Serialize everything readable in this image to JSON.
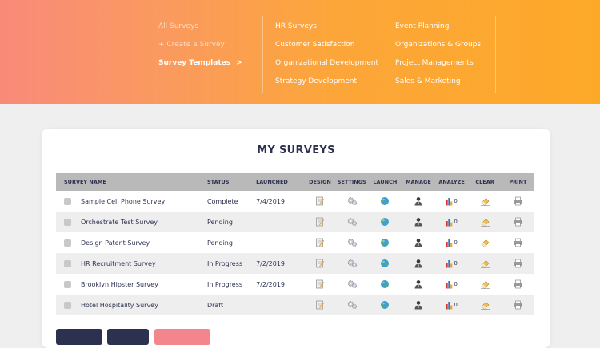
{
  "nav": {
    "col1": [
      "All Surveys",
      "+ Create a Survey",
      "Survey Templates"
    ],
    "col1_active_arrow": ">",
    "col2": [
      "HR Surveys",
      "Customer Satisfaction",
      "Organizational Development",
      "Strategy Development"
    ],
    "col3": [
      "Event Planning",
      "Organizations & Groups",
      "Project Managements",
      "Sales & Marketing"
    ]
  },
  "main": {
    "title": "MY SURVEYS",
    "columns": [
      "SURVEY NAME",
      "STATUS",
      "LAUNCHED",
      "DESIGN",
      "SETTINGS",
      "LAUNCH",
      "MANAGE",
      "ANALYZE",
      "CLEAR",
      "PRINT"
    ],
    "rows": [
      {
        "name": "Sample Cell Phone Survey",
        "status": "Complete",
        "launched": "7/4/2019",
        "responses": "0"
      },
      {
        "name": "Orchestrate Test Survey",
        "status": "Pending",
        "launched": "",
        "responses": "0"
      },
      {
        "name": "Design Patent Survey",
        "status": "Pending",
        "launched": "",
        "responses": "0"
      },
      {
        "name": "HR Recruitment Survey",
        "status": "In Progress",
        "launched": "7/2/2019",
        "responses": "0"
      },
      {
        "name": "Brooklyn Hipster Survey",
        "status": "In Progress",
        "launched": "7/2/2019",
        "responses": "0"
      },
      {
        "name": "Hotel Hospitality Survey",
        "status": "Draft",
        "launched": "",
        "responses": "0"
      }
    ]
  },
  "colors": {
    "accent_orange": "#fda928",
    "accent_coral": "#f98a7a",
    "navy": "#2d3150",
    "pink_button": "#f3868c"
  },
  "icons": [
    "design-icon",
    "settings-gears-icon",
    "globe-icon",
    "user-icon",
    "bar-chart-icon",
    "eraser-icon",
    "printer-icon"
  ]
}
